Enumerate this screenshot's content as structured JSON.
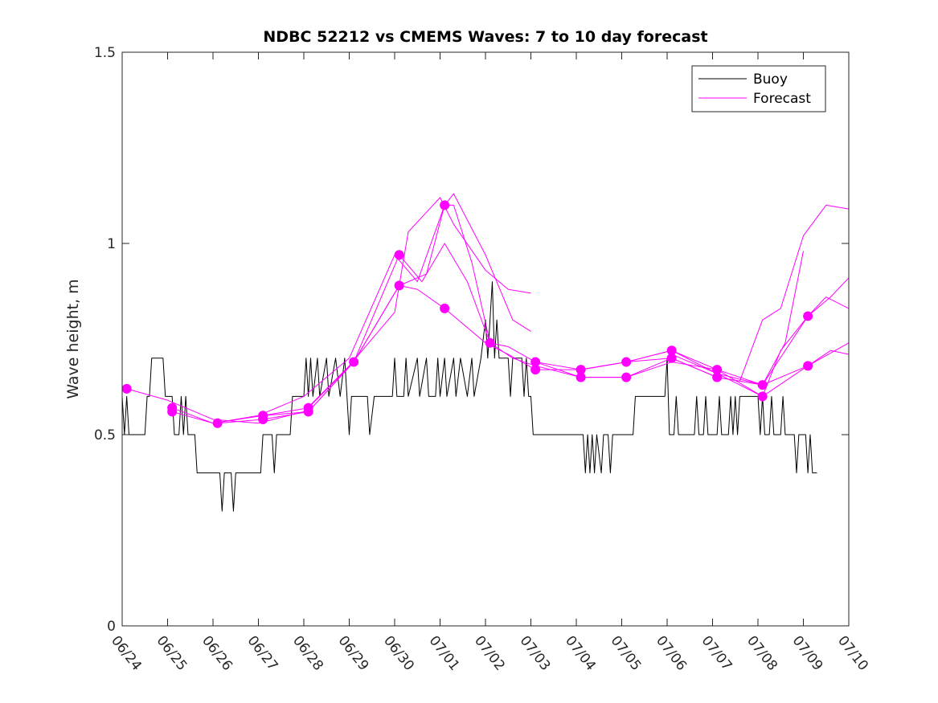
{
  "chart_data": {
    "type": "line",
    "title": "NDBC 52212 vs CMEMS Waves: 7 to 10 day forecast",
    "xlabel": "",
    "ylabel": "Wave height, m",
    "xlim": [
      0,
      16
    ],
    "ylim": [
      0,
      1.5
    ],
    "x_ticks": [
      "06/24",
      "06/25",
      "06/26",
      "06/27",
      "06/28",
      "06/29",
      "06/30",
      "07/01",
      "07/02",
      "07/03",
      "07/04",
      "07/05",
      "07/06",
      "07/07",
      "07/08",
      "07/09",
      "07/10"
    ],
    "y_ticks": [
      0,
      0.5,
      1,
      1.5
    ],
    "y_tick_labels": [
      "0",
      "0.5",
      "1",
      "1.5"
    ],
    "legend": {
      "placement": "top-right",
      "entries": [
        {
          "label": "Buoy",
          "color": "#000000"
        },
        {
          "label": "Forecast",
          "color": "#ff00ff"
        }
      ]
    },
    "series": [
      {
        "name": "Buoy",
        "color": "#000000",
        "points": [
          [
            0,
            0.6
          ],
          [
            0.05,
            0.5
          ],
          [
            0.1,
            0.6
          ],
          [
            0.15,
            0.5
          ],
          [
            0.5,
            0.5
          ],
          [
            0.55,
            0.6
          ],
          [
            0.6,
            0.6
          ],
          [
            0.65,
            0.7
          ],
          [
            0.9,
            0.7
          ],
          [
            0.95,
            0.6
          ],
          [
            1.1,
            0.6
          ],
          [
            1.15,
            0.5
          ],
          [
            1.25,
            0.5
          ],
          [
            1.3,
            0.6
          ],
          [
            1.35,
            0.5
          ],
          [
            1.4,
            0.6
          ],
          [
            1.45,
            0.5
          ],
          [
            1.6,
            0.5
          ],
          [
            1.65,
            0.4
          ],
          [
            2.15,
            0.4
          ],
          [
            2.2,
            0.3
          ],
          [
            2.25,
            0.4
          ],
          [
            2.4,
            0.4
          ],
          [
            2.45,
            0.3
          ],
          [
            2.5,
            0.4
          ],
          [
            3.05,
            0.4
          ],
          [
            3.1,
            0.5
          ],
          [
            3.3,
            0.5
          ],
          [
            3.35,
            0.4
          ],
          [
            3.4,
            0.5
          ],
          [
            3.7,
            0.5
          ],
          [
            3.75,
            0.6
          ],
          [
            4.0,
            0.6
          ],
          [
            4.05,
            0.7
          ],
          [
            4.1,
            0.6
          ],
          [
            4.15,
            0.7
          ],
          [
            4.2,
            0.6
          ],
          [
            4.3,
            0.7
          ],
          [
            4.35,
            0.6
          ],
          [
            4.5,
            0.7
          ],
          [
            4.55,
            0.6
          ],
          [
            4.7,
            0.7
          ],
          [
            4.8,
            0.6
          ],
          [
            4.9,
            0.7
          ],
          [
            4.95,
            0.6
          ],
          [
            5.0,
            0.5
          ],
          [
            5.05,
            0.6
          ],
          [
            5.4,
            0.6
          ],
          [
            5.45,
            0.5
          ],
          [
            5.55,
            0.6
          ],
          [
            5.95,
            0.6
          ],
          [
            6.0,
            0.7
          ],
          [
            6.05,
            0.6
          ],
          [
            6.2,
            0.6
          ],
          [
            6.25,
            0.7
          ],
          [
            6.3,
            0.6
          ],
          [
            6.5,
            0.7
          ],
          [
            6.55,
            0.6
          ],
          [
            6.7,
            0.7
          ],
          [
            6.75,
            0.6
          ],
          [
            6.9,
            0.6
          ],
          [
            6.95,
            0.7
          ],
          [
            7.0,
            0.6
          ],
          [
            7.1,
            0.7
          ],
          [
            7.15,
            0.6
          ],
          [
            7.3,
            0.7
          ],
          [
            7.35,
            0.6
          ],
          [
            7.45,
            0.7
          ],
          [
            7.6,
            0.6
          ],
          [
            7.7,
            0.7
          ],
          [
            7.75,
            0.6
          ],
          [
            7.9,
            0.7
          ],
          [
            8.0,
            0.8
          ],
          [
            8.05,
            0.7
          ],
          [
            8.1,
            0.8
          ],
          [
            8.15,
            0.9
          ],
          [
            8.2,
            0.7
          ],
          [
            8.25,
            0.8
          ],
          [
            8.3,
            0.7
          ],
          [
            8.5,
            0.7
          ],
          [
            8.55,
            0.6
          ],
          [
            8.6,
            0.7
          ],
          [
            8.8,
            0.7
          ],
          [
            8.85,
            0.6
          ],
          [
            8.9,
            0.7
          ],
          [
            8.95,
            0.6
          ],
          [
            9.0,
            0.6
          ],
          [
            9.05,
            0.5
          ],
          [
            10.15,
            0.5
          ],
          [
            10.2,
            0.4
          ],
          [
            10.25,
            0.5
          ],
          [
            10.3,
            0.4
          ],
          [
            10.35,
            0.5
          ],
          [
            10.4,
            0.4
          ],
          [
            10.45,
            0.5
          ],
          [
            10.55,
            0.4
          ],
          [
            10.6,
            0.5
          ],
          [
            10.7,
            0.5
          ],
          [
            10.75,
            0.4
          ],
          [
            10.8,
            0.5
          ],
          [
            11.25,
            0.5
          ],
          [
            11.3,
            0.6
          ],
          [
            11.95,
            0.6
          ],
          [
            12.0,
            0.7
          ],
          [
            12.05,
            0.5
          ],
          [
            12.15,
            0.5
          ],
          [
            12.2,
            0.6
          ],
          [
            12.25,
            0.5
          ],
          [
            12.6,
            0.5
          ],
          [
            12.65,
            0.6
          ],
          [
            12.7,
            0.5
          ],
          [
            12.8,
            0.5
          ],
          [
            12.85,
            0.6
          ],
          [
            12.9,
            0.5
          ],
          [
            13.1,
            0.5
          ],
          [
            13.15,
            0.6
          ],
          [
            13.2,
            0.5
          ],
          [
            13.35,
            0.5
          ],
          [
            13.4,
            0.6
          ],
          [
            13.45,
            0.5
          ],
          [
            13.5,
            0.6
          ],
          [
            13.55,
            0.5
          ],
          [
            13.6,
            0.6
          ],
          [
            14.0,
            0.6
          ],
          [
            14.05,
            0.5
          ],
          [
            14.1,
            0.6
          ],
          [
            14.15,
            0.5
          ],
          [
            14.25,
            0.5
          ],
          [
            14.3,
            0.6
          ],
          [
            14.35,
            0.5
          ],
          [
            14.5,
            0.5
          ],
          [
            14.55,
            0.6
          ],
          [
            14.6,
            0.5
          ],
          [
            14.8,
            0.5
          ],
          [
            14.85,
            0.4
          ],
          [
            14.9,
            0.5
          ],
          [
            15.05,
            0.5
          ],
          [
            15.1,
            0.4
          ],
          [
            15.15,
            0.5
          ],
          [
            15.2,
            0.4
          ],
          [
            15.3,
            0.4
          ]
        ]
      },
      {
        "name": "Forecast",
        "color": "#ff00ff",
        "points": [
          [
            0.1,
            0.62
          ],
          [
            1.0,
            0.59
          ],
          [
            2.0,
            0.54
          ],
          [
            3.0,
            0.53
          ],
          [
            4.0,
            0.56
          ],
          [
            5.0,
            0.68
          ],
          [
            6.0,
            0.82
          ],
          [
            6.3,
            1.03
          ],
          [
            7.0,
            1.12
          ],
          [
            7.3,
            1.05
          ],
          [
            8.0,
            0.93
          ],
          [
            8.5,
            0.88
          ],
          [
            9.0,
            0.87
          ]
        ]
      },
      {
        "name": "Forecast",
        "color": "#ff00ff",
        "points": [
          [
            1.1,
            0.56
          ],
          [
            2.0,
            0.53
          ],
          [
            3.0,
            0.55
          ],
          [
            4.0,
            0.6
          ],
          [
            5.0,
            0.7
          ],
          [
            6.0,
            0.97
          ],
          [
            6.5,
            0.9
          ],
          [
            7.1,
            1.1
          ],
          [
            7.3,
            1.13
          ],
          [
            8.0,
            0.97
          ],
          [
            8.6,
            0.8
          ],
          [
            9.0,
            0.77
          ]
        ]
      },
      {
        "name": "Forecast",
        "color": "#ff00ff",
        "points": [
          [
            1.1,
            0.57
          ],
          [
            2.0,
            0.53
          ],
          [
            3.1,
            0.55
          ],
          [
            4.1,
            0.57
          ],
          [
            5.1,
            0.69
          ],
          [
            6.1,
            0.89
          ],
          [
            6.5,
            0.88
          ],
          [
            7.1,
            0.83
          ],
          [
            8.0,
            0.74
          ],
          [
            8.5,
            0.71
          ],
          [
            9.1,
            0.67
          ],
          [
            10.1,
            0.67
          ],
          [
            11.1,
            0.69
          ],
          [
            12.1,
            0.72
          ],
          [
            13.1,
            0.66
          ],
          [
            14.1,
            0.6
          ],
          [
            15.1,
            0.68
          ],
          [
            16.0,
            0.74
          ]
        ]
      },
      {
        "name": "Forecast",
        "color": "#ff00ff",
        "points": [
          [
            2.1,
            0.53
          ],
          [
            3.1,
            0.54
          ],
          [
            4.1,
            0.56
          ],
          [
            5.1,
            0.69
          ],
          [
            6.1,
            0.89
          ],
          [
            6.7,
            0.92
          ],
          [
            7.1,
            1.1
          ],
          [
            7.3,
            1.1
          ],
          [
            7.7,
            0.95
          ],
          [
            8.1,
            0.74
          ],
          [
            8.5,
            0.73
          ],
          [
            9.1,
            0.69
          ],
          [
            10.1,
            0.65
          ],
          [
            11.1,
            0.65
          ],
          [
            12.1,
            0.7
          ],
          [
            13.1,
            0.65
          ],
          [
            14.1,
            0.63
          ],
          [
            15.1,
            0.81
          ],
          [
            15.5,
            0.86
          ],
          [
            16.0,
            0.83
          ]
        ]
      },
      {
        "name": "Forecast",
        "color": "#ff00ff",
        "points": [
          [
            3.1,
            0.55
          ],
          [
            4.1,
            0.56
          ],
          [
            5.1,
            0.69
          ],
          [
            6.1,
            0.97
          ],
          [
            6.6,
            0.9
          ],
          [
            7.1,
            1.0
          ],
          [
            7.6,
            0.9
          ],
          [
            8.1,
            0.74
          ],
          [
            8.6,
            0.7
          ],
          [
            9.1,
            0.68
          ],
          [
            10.1,
            0.65
          ],
          [
            11.1,
            0.65
          ],
          [
            12.1,
            0.69
          ],
          [
            13.1,
            0.67
          ],
          [
            14.1,
            0.63
          ],
          [
            14.6,
            0.74
          ],
          [
            15.0,
            0.98
          ]
        ]
      },
      {
        "name": "Forecast",
        "color": "#ff00ff",
        "points": [
          [
            9.1,
            0.69
          ],
          [
            10.1,
            0.67
          ],
          [
            11.1,
            0.69
          ],
          [
            12.1,
            0.72
          ],
          [
            13.1,
            0.67
          ],
          [
            14.1,
            0.6
          ],
          [
            14.5,
            0.72
          ],
          [
            15.1,
            0.81
          ],
          [
            15.6,
            0.86
          ],
          [
            16.0,
            0.91
          ]
        ]
      },
      {
        "name": "Forecast",
        "color": "#ff00ff",
        "points": [
          [
            10.1,
            0.67
          ],
          [
            11.1,
            0.69
          ],
          [
            12.1,
            0.7
          ],
          [
            13.1,
            0.65
          ],
          [
            13.6,
            0.64
          ],
          [
            14.1,
            0.8
          ],
          [
            14.5,
            0.83
          ],
          [
            15.0,
            1.02
          ],
          [
            15.5,
            1.1
          ],
          [
            16.0,
            1.09
          ]
        ]
      },
      {
        "name": "Forecast",
        "color": "#ff00ff",
        "points": [
          [
            12.1,
            0.71
          ],
          [
            13.1,
            0.66
          ],
          [
            14.1,
            0.63
          ],
          [
            15.1,
            0.68
          ],
          [
            15.6,
            0.72
          ],
          [
            16.0,
            0.71
          ]
        ]
      }
    ],
    "markers": {
      "color": "#ff00ff",
      "points": [
        [
          0.1,
          0.62
        ],
        [
          1.1,
          0.57
        ],
        [
          1.1,
          0.56
        ],
        [
          2.1,
          0.53
        ],
        [
          3.1,
          0.55
        ],
        [
          3.1,
          0.54
        ],
        [
          4.1,
          0.57
        ],
        [
          4.1,
          0.56
        ],
        [
          5.1,
          0.69
        ],
        [
          6.1,
          0.97
        ],
        [
          6.1,
          0.89
        ],
        [
          7.1,
          1.1
        ],
        [
          7.1,
          0.83
        ],
        [
          8.1,
          0.74
        ],
        [
          9.1,
          0.69
        ],
        [
          9.1,
          0.67
        ],
        [
          10.1,
          0.67
        ],
        [
          10.1,
          0.65
        ],
        [
          11.1,
          0.69
        ],
        [
          11.1,
          0.65
        ],
        [
          12.1,
          0.72
        ],
        [
          12.1,
          0.7
        ],
        [
          13.1,
          0.67
        ],
        [
          13.1,
          0.65
        ],
        [
          14.1,
          0.63
        ],
        [
          14.1,
          0.6
        ],
        [
          15.1,
          0.81
        ],
        [
          15.1,
          0.68
        ]
      ]
    }
  }
}
